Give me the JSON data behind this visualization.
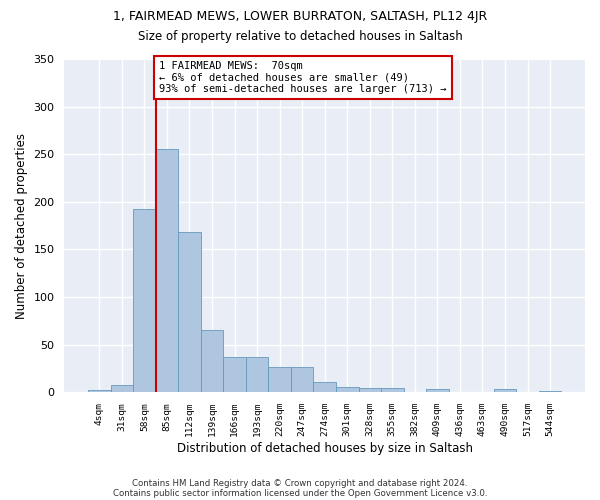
{
  "title1": "1, FAIRMEAD MEWS, LOWER BURRATON, SALTASH, PL12 4JR",
  "title2": "Size of property relative to detached houses in Saltash",
  "xlabel": "Distribution of detached houses by size in Saltash",
  "ylabel": "Number of detached properties",
  "footer1": "Contains HM Land Registry data © Crown copyright and database right 2024.",
  "footer2": "Contains public sector information licensed under the Open Government Licence v3.0.",
  "bar_values": [
    2,
    8,
    192,
    255,
    168,
    65,
    37,
    37,
    27,
    27,
    11,
    6,
    4,
    4,
    0,
    3,
    0,
    0,
    3,
    0,
    1
  ],
  "bin_labels": [
    "4sqm",
    "31sqm",
    "58sqm",
    "85sqm",
    "112sqm",
    "139sqm",
    "166sqm",
    "193sqm",
    "220sqm",
    "247sqm",
    "274sqm",
    "301sqm",
    "328sqm",
    "355sqm",
    "382sqm",
    "409sqm",
    "436sqm",
    "463sqm",
    "490sqm",
    "517sqm",
    "544sqm"
  ],
  "bar_color": "#aec6e0",
  "bar_edge_color": "#6699bb",
  "bg_color": "#e8edf6",
  "grid_color": "#ffffff",
  "annotation_line1": "1 FAIRMEAD MEWS:  70sqm",
  "annotation_line2": "← 6% of detached houses are smaller (49)",
  "annotation_line3": "93% of semi-detached houses are larger (713) →",
  "vline_x": 2.5,
  "vline_color": "#cc0000",
  "annotation_box_color": "#cc0000",
  "ylim": [
    0,
    350
  ],
  "yticks": [
    0,
    50,
    100,
    150,
    200,
    250,
    300,
    350
  ]
}
